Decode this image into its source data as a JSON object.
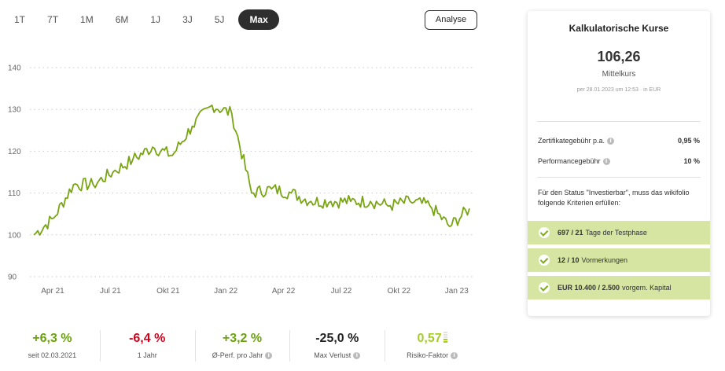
{
  "tabs": [
    {
      "label": "1T",
      "active": false
    },
    {
      "label": "7T",
      "active": false
    },
    {
      "label": "1M",
      "active": false
    },
    {
      "label": "6M",
      "active": false
    },
    {
      "label": "1J",
      "active": false
    },
    {
      "label": "3J",
      "active": false
    },
    {
      "label": "5J",
      "active": false
    },
    {
      "label": "Max",
      "active": true
    }
  ],
  "analyse_label": "Analyse",
  "chart_data": {
    "type": "line",
    "ylim": [
      90,
      140
    ],
    "yticks": [
      "90",
      "100",
      "110",
      "120",
      "130",
      "140"
    ],
    "xticks": [
      "Apr 21",
      "Jul 21",
      "Okt 21",
      "Jan 22",
      "Apr 22",
      "Jul 22",
      "Okt 22",
      "Jan 23"
    ],
    "grid": "horizontal-dotted",
    "color": "#78a511",
    "series": [
      {
        "values_by_month": [
          {
            "x": "2021-03",
            "y": 100
          },
          {
            "x": "2021-04",
            "y": 104
          },
          {
            "x": "2021-05",
            "y": 112
          },
          {
            "x": "2021-06",
            "y": 112
          },
          {
            "x": "2021-07",
            "y": 115
          },
          {
            "x": "2021-08",
            "y": 118
          },
          {
            "x": "2021-09",
            "y": 121
          },
          {
            "x": "2021-10",
            "y": 119
          },
          {
            "x": "2021-11",
            "y": 126
          },
          {
            "x": "2021-12",
            "y": 131
          },
          {
            "x": "2022-01",
            "y": 129
          },
          {
            "x": "2022-02",
            "y": 110
          },
          {
            "x": "2022-03",
            "y": 111
          },
          {
            "x": "2022-04",
            "y": 110
          },
          {
            "x": "2022-05",
            "y": 108
          },
          {
            "x": "2022-06",
            "y": 108
          },
          {
            "x": "2022-07",
            "y": 108
          },
          {
            "x": "2022-08",
            "y": 108
          },
          {
            "x": "2022-09",
            "y": 107
          },
          {
            "x": "2022-10",
            "y": 108
          },
          {
            "x": "2022-11",
            "y": 107
          },
          {
            "x": "2022-12",
            "y": 102
          },
          {
            "x": "2023-01",
            "y": 106.3
          }
        ]
      }
    ]
  },
  "kpis": [
    {
      "value": "+6,3 %",
      "label": "seit 02.03.2021",
      "tone": "pos",
      "info": false
    },
    {
      "value": "-6,4 %",
      "label": "1 Jahr",
      "tone": "neg",
      "info": false
    },
    {
      "value": "+3,2 %",
      "label": "Ø-Perf. pro Jahr",
      "tone": "pos",
      "info": true
    },
    {
      "value": "-25,0 %",
      "label": "Max Verlust",
      "tone": "neu",
      "info": true
    },
    {
      "value": "0,57",
      "label": "Risiko-Faktor",
      "tone": "risk",
      "info": true
    }
  ],
  "card": {
    "title": "Kalkulatorische Kurse",
    "price": "106,26",
    "price_label": "Mittelkurs",
    "stamp": "per 28.01.2023 um 12:53 · in EUR",
    "fees": [
      {
        "label": "Zertifikategebühr p.a.",
        "value": "0,95 %"
      },
      {
        "label": "Performancegebühr",
        "value": "10 %"
      }
    ],
    "criteria_intro": "Für den Status \"Investierbar\", muss das wikifolio folgende Kriterien erfüllen:",
    "criteria": [
      {
        "value": "697 / 21",
        "text": "Tage der Testphase"
      },
      {
        "value": "12 / 10",
        "text": "Vormerkungen"
      },
      {
        "value": "EUR 10.400 / 2.500",
        "text": "vorgem. Kapital"
      }
    ]
  }
}
